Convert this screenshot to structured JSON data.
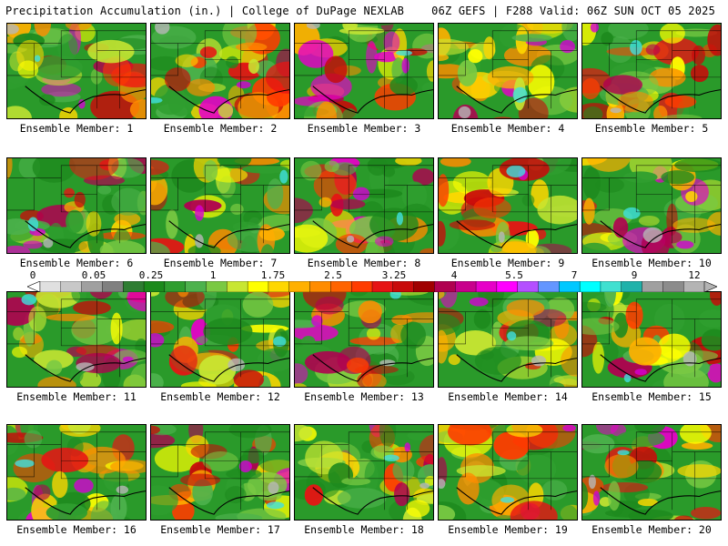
{
  "header": {
    "left": "Precipitation Accumulation (in.) | College of DuPage NEXLAB",
    "right": "06Z GEFS | F288 Valid: 06Z SUN OCT 05 2025"
  },
  "colorbar": {
    "labels": [
      "0",
      "0.05",
      "0.25",
      "1",
      "1.75",
      "2.5",
      "3.25",
      "4",
      "5.5",
      "7",
      "9",
      "12"
    ],
    "colors": [
      "#e0e0e0",
      "#c8c8c8",
      "#a0a0a0",
      "#808080",
      "#2e7d32",
      "#1b8a1b",
      "#2f9e2f",
      "#4db24d",
      "#7ac943",
      "#c8e632",
      "#ffff00",
      "#ffd700",
      "#ffb000",
      "#ff8c00",
      "#ff6400",
      "#ff3c00",
      "#e61414",
      "#c80a0a",
      "#a00000",
      "#b00050",
      "#c8008c",
      "#e600c8",
      "#ff00ff",
      "#b450ff",
      "#6496ff",
      "#00c8ff",
      "#00ffff",
      "#40e0d0",
      "#20b2aa",
      "#a0a0a0",
      "#8c8c8c",
      "#b4b4b4"
    ]
  },
  "members": [
    {
      "caption": "Ensemble Member: 1"
    },
    {
      "caption": "Ensemble Member: 2"
    },
    {
      "caption": "Ensemble Member: 3"
    },
    {
      "caption": "Ensemble Member: 4"
    },
    {
      "caption": "Ensemble Member: 5"
    },
    {
      "caption": "Ensemble Member: 6"
    },
    {
      "caption": "Ensemble Member: 7"
    },
    {
      "caption": "Ensemble Member: 8"
    },
    {
      "caption": "Ensemble Member: 9"
    },
    {
      "caption": "Ensemble Member: 10"
    },
    {
      "caption": "Ensemble Member: 11"
    },
    {
      "caption": "Ensemble Member: 12"
    },
    {
      "caption": "Ensemble Member: 13"
    },
    {
      "caption": "Ensemble Member: 14"
    },
    {
      "caption": "Ensemble Member: 15"
    },
    {
      "caption": "Ensemble Member: 16"
    },
    {
      "caption": "Ensemble Member: 17"
    },
    {
      "caption": "Ensemble Member: 18"
    },
    {
      "caption": "Ensemble Member: 19"
    },
    {
      "caption": "Ensemble Member: 20"
    }
  ]
}
